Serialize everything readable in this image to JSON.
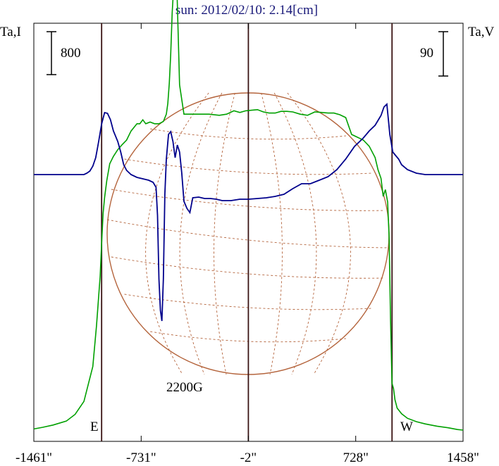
{
  "chart_data": {
    "type": "line",
    "title": "sun: 2012/02/10: 2.14[cm]",
    "left_axis_label": "Ta,I",
    "right_axis_label": "Ta,V",
    "left_scale_bar": "800",
    "right_scale_bar": "90",
    "x_ticks": [
      "-1461\"",
      "-731\"",
      "-2\"",
      "728\"",
      "1458\""
    ],
    "x_tick_values": [
      -1461,
      -731,
      -2,
      728,
      1458
    ],
    "xlim": [
      -1461,
      1458
    ],
    "disk_limb_markers": [
      -1000,
      -2,
      975
    ],
    "east_label": "E",
    "west_label": "W",
    "annotation": "2200G",
    "series": [
      {
        "color": "#00a000",
        "x": [
          -1461,
          -1400,
          -1330,
          -1240,
          -1180,
          -1120,
          -1060,
          -1035,
          -1010,
          -1000,
          -990,
          -980,
          -965,
          -945,
          -920,
          -890,
          -860,
          -830,
          -800,
          -760,
          -740,
          -720,
          -700,
          -670,
          -640,
          -610,
          -580,
          -560,
          -550,
          -540,
          -530,
          -520,
          -510,
          -500,
          -490,
          -470,
          -440,
          -400,
          -340,
          -270,
          -200,
          -150,
          -100,
          -60,
          -20,
          20,
          60,
          100,
          140,
          180,
          220,
          260,
          300,
          350,
          400,
          450,
          500,
          540,
          580,
          620,
          660,
          700,
          740,
          780,
          820,
          860,
          880,
          900,
          915,
          930,
          945,
          955,
          965,
          975,
          985,
          995,
          1010,
          1040,
          1080,
          1140,
          1200,
          1280,
          1360,
          1420,
          1458
        ],
        "y": [
          7,
          10,
          14,
          21,
          33,
          56,
          118,
          190,
          278,
          337,
          390,
          418,
          448,
          478,
          491,
          503,
          512,
          520,
          536,
          549,
          549,
          556,
          549,
          552,
          549,
          549,
          553,
          566,
          585,
          621,
          672,
          746,
          792,
          825,
          808,
          618,
          566,
          566,
          566,
          566,
          564,
          566,
          572,
          569,
          572,
          573,
          574,
          570,
          568,
          568,
          571,
          571,
          570,
          566,
          564,
          570,
          569,
          568,
          568,
          565,
          560,
          530,
          525,
          520,
          509,
          489,
          467,
          452,
          420,
          432,
          410,
          347,
          201,
          88,
          79,
          59,
          44,
          34,
          26,
          20,
          16,
          12,
          9,
          6,
          5
        ]
      },
      {
        "color": "#00008c",
        "x": [
          -1461,
          -1300,
          -1160,
          -1120,
          -1100,
          -1080,
          -1060,
          -1040,
          -1020,
          -1000,
          -980,
          -960,
          -940,
          -920,
          -890,
          -870,
          -850,
          -830,
          -800,
          -760,
          -720,
          -680,
          -650,
          -630,
          -620,
          -610,
          -600,
          -590,
          -580,
          -570,
          -560,
          -545,
          -530,
          -515,
          -500,
          -485,
          -470,
          -455,
          -440,
          -420,
          -400,
          -380,
          -340,
          -300,
          -260,
          -220,
          -180,
          -120,
          -60,
          0,
          60,
          120,
          180,
          240,
          300,
          360,
          420,
          480,
          540,
          600,
          660,
          720,
          780,
          820,
          860,
          880,
          900,
          920,
          940,
          960,
          980,
          1000,
          1020,
          1040,
          1080,
          1140,
          1200,
          1300,
          1400,
          1458
        ],
        "y": [
          -2,
          -2,
          -2,
          -2,
          0,
          3,
          10,
          22,
          45,
          70,
          86,
          85,
          76,
          60,
          45,
          30,
          12,
          4,
          -2,
          -6,
          -8,
          -10,
          -13,
          -20,
          -60,
          -150,
          -195,
          -210,
          -150,
          -30,
          20,
          55,
          59,
          45,
          22,
          40,
          30,
          0,
          -40,
          -50,
          -56,
          -35,
          -34,
          -36,
          -36,
          -37,
          -39,
          -39,
          -37,
          -37,
          -36,
          -35,
          -33,
          -30,
          -22,
          -15,
          -15,
          -10,
          -5,
          5,
          20,
          38,
          50,
          60,
          68,
          75,
          82,
          94,
          98,
          55,
          30,
          25,
          20,
          12,
          5,
          0,
          -2,
          -2,
          -2,
          -2
        ]
      }
    ]
  }
}
